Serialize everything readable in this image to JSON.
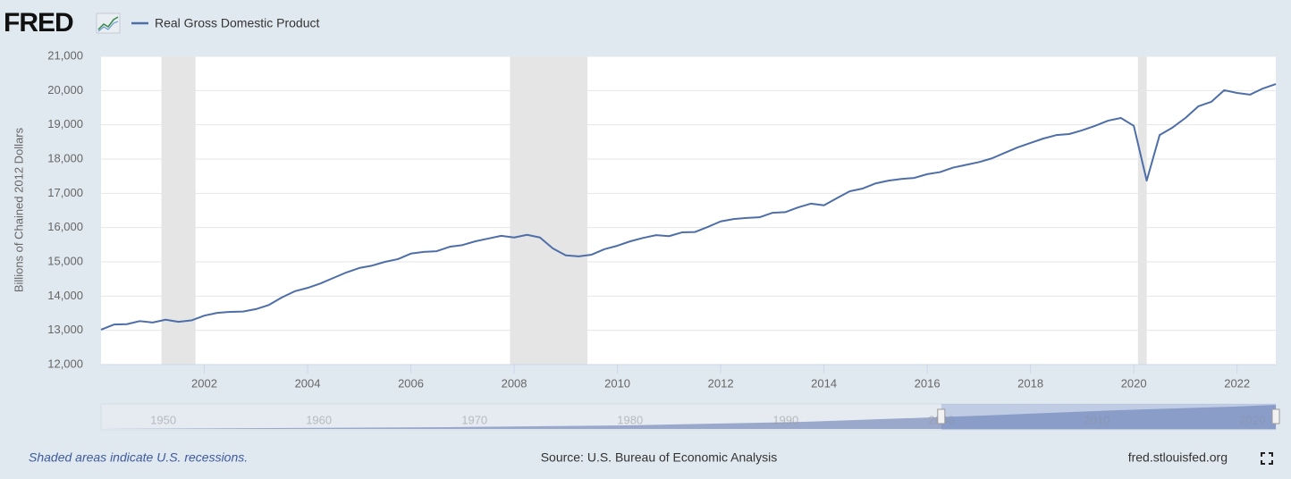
{
  "chart_data": {
    "type": "line",
    "brand": "FRED",
    "y_label": "Billions of Chained 2012 Dollars",
    "series": [
      {
        "name": "Real Gross Domestic Product",
        "color": "#4e6ea8",
        "values": [
          13020,
          13170,
          13180,
          13270,
          13230,
          13310,
          13250,
          13290,
          13430,
          13510,
          13540,
          13550,
          13620,
          13740,
          13960,
          14140,
          14240,
          14370,
          14530,
          14690,
          14820,
          14890,
          15000,
          15080,
          15240,
          15290,
          15310,
          15440,
          15490,
          15600,
          15680,
          15760,
          15710,
          15790,
          15710,
          15390,
          15190,
          15160,
          15210,
          15370,
          15470,
          15600,
          15700,
          15780,
          15750,
          15860,
          15870,
          16020,
          16180,
          16250,
          16280,
          16300,
          16430,
          16450,
          16590,
          16700,
          16650,
          16860,
          17060,
          17140,
          17290,
          17370,
          17420,
          17450,
          17560,
          17620,
          17750,
          17830,
          17910,
          18020,
          18180,
          18340,
          18470,
          18600,
          18700,
          18730,
          18840,
          18970,
          19120,
          19200,
          18970,
          17370,
          18700,
          18920,
          19200,
          19540,
          19670,
          20010,
          19930,
          19880,
          20060,
          20190
        ]
      }
    ],
    "x": [
      2000,
      2000.25,
      2000.5,
      2000.75,
      2001,
      2001.25,
      2001.5,
      2001.75,
      2002,
      2002.25,
      2002.5,
      2002.75,
      2003,
      2003.25,
      2003.5,
      2003.75,
      2004,
      2004.25,
      2004.5,
      2004.75,
      2005,
      2005.25,
      2005.5,
      2005.75,
      2006,
      2006.25,
      2006.5,
      2006.75,
      2007,
      2007.25,
      2007.5,
      2007.75,
      2008,
      2008.25,
      2008.5,
      2008.75,
      2009,
      2009.25,
      2009.5,
      2009.75,
      2010,
      2010.25,
      2010.5,
      2010.75,
      2011,
      2011.25,
      2011.5,
      2011.75,
      2012,
      2012.25,
      2012.5,
      2012.75,
      2013,
      2013.25,
      2013.5,
      2013.75,
      2014,
      2014.25,
      2014.5,
      2014.75,
      2015,
      2015.25,
      2015.5,
      2015.75,
      2016,
      2016.25,
      2016.5,
      2016.75,
      2017,
      2017.25,
      2017.5,
      2017.75,
      2018,
      2018.25,
      2018.5,
      2018.75,
      2019,
      2019.25,
      2019.5,
      2019.75,
      2020,
      2020.25,
      2020.5,
      2020.75,
      2021,
      2021.25,
      2021.5,
      2021.75,
      2022,
      2022.25,
      2022.5,
      2022.75
    ],
    "xlim": [
      2000,
      2022.75
    ],
    "xticks": [
      2002,
      2004,
      2006,
      2008,
      2010,
      2012,
      2014,
      2016,
      2018,
      2020,
      2022
    ],
    "ylim": [
      12000,
      21000
    ],
    "yticks": [
      {
        "value": 12000,
        "label": "12,000"
      },
      {
        "value": 13000,
        "label": "13,000"
      },
      {
        "value": 14000,
        "label": "14,000"
      },
      {
        "value": 15000,
        "label": "15,000"
      },
      {
        "value": 16000,
        "label": "16,000"
      },
      {
        "value": 17000,
        "label": "17,000"
      },
      {
        "value": 18000,
        "label": "18,000"
      },
      {
        "value": 19000,
        "label": "19,000"
      },
      {
        "value": 20000,
        "label": "20,000"
      },
      {
        "value": 21000,
        "label": "21,000"
      }
    ],
    "grid": true,
    "recessions": [
      [
        2001.17,
        2001.83
      ],
      [
        2007.92,
        2009.42
      ],
      [
        2020.08,
        2020.25
      ]
    ],
    "recession_color": "#e5e5e5",
    "navigator": {
      "xlim": [
        1946,
        2021.5
      ],
      "ticks": [
        1950,
        1960,
        1970,
        1980,
        1990,
        2000,
        2010,
        2020
      ]
    },
    "footnote": "Shaded areas indicate U.S. recessions.",
    "source": "Source: U.S. Bureau of Economic Analysis",
    "site": "fred.stlouisfed.org"
  }
}
